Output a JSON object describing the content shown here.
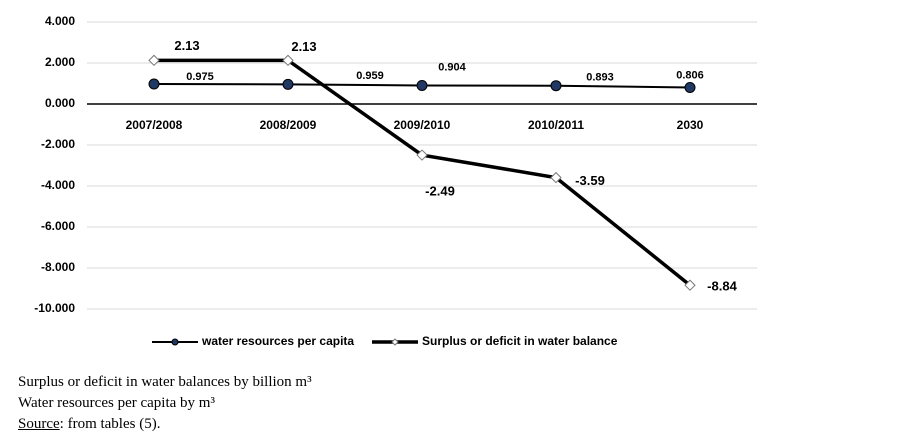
{
  "chart_data": {
    "type": "line",
    "categories": [
      "2007/2008",
      "2008/2009",
      "2009/2010",
      "2010/2011",
      "2030"
    ],
    "series": [
      {
        "name": "water resources per capita",
        "color": "#1f3864",
        "values": [
          0.975,
          0.959,
          0.904,
          0.893,
          0.806
        ]
      },
      {
        "name": "Surplus or deficit in water balance",
        "color": "#000000",
        "values": [
          2.13,
          2.13,
          -2.49,
          -3.59,
          -8.84
        ]
      }
    ],
    "ylim": [
      -10,
      4
    ],
    "yticks": [
      {
        "value": 4,
        "label": "4.000"
      },
      {
        "value": 2,
        "label": "2.000"
      },
      {
        "value": 0,
        "label": "0.000"
      },
      {
        "value": -2,
        "label": "-2.000"
      },
      {
        "value": -4,
        "label": "-4.000"
      },
      {
        "value": -6,
        "label": "-6.000"
      },
      {
        "value": -8,
        "label": "-8.000"
      },
      {
        "value": -10,
        "label": "-10.000"
      }
    ],
    "grid": true,
    "legend": "bottom"
  },
  "caption": {
    "line1": "Surplus or deficit in water balances by billion m³",
    "line2": "Water resources per capita by m³",
    "source_label": "Source",
    "source_text": ": from tables  (5)."
  }
}
